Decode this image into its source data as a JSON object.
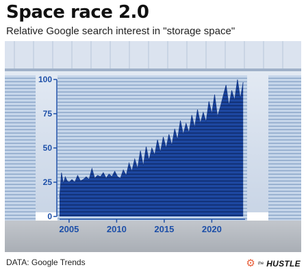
{
  "header": {
    "title": "Space race 2.0",
    "subtitle": "Relative Google search interest in \"storage space\""
  },
  "footer": {
    "source": "DATA: Google Trends",
    "brand_small": "the",
    "brand_name": "HUSTLE",
    "brand_icon": "hubspot-sprocket-icon"
  },
  "colors": {
    "area_fill": "#1d47a0",
    "area_dark": "#0e2a6b",
    "axis_text": "#1d4fa8",
    "door_light": "#c6d6ea",
    "door_stripe": "#8aa5c8",
    "wall": "#d2dceb",
    "ground": "#b4b9c0"
  },
  "chart_data": {
    "type": "area",
    "title": "",
    "xlabel": "",
    "ylabel": "",
    "xlim": [
      2004,
      2023.5
    ],
    "ylim": [
      0,
      100
    ],
    "x_ticks": [
      {
        "label": "2005",
        "value": 2005
      },
      {
        "label": "2010",
        "value": 2010
      },
      {
        "label": "2015",
        "value": 2015
      },
      {
        "label": "2020",
        "value": 2020
      }
    ],
    "y_ticks": [
      {
        "label": "0",
        "value": 0
      },
      {
        "label": "25",
        "value": 25
      },
      {
        "label": "50",
        "value": 50
      },
      {
        "label": "75",
        "value": 75
      },
      {
        "label": "100",
        "value": 100
      }
    ],
    "grid": false,
    "legend": "none",
    "series": [
      {
        "x": [
          2004.0,
          2004.2,
          2004.4,
          2004.6,
          2004.8,
          2005.0,
          2005.3,
          2005.6,
          2005.9,
          2006.2,
          2006.5,
          2006.8,
          2007.1,
          2007.4,
          2007.7,
          2008.0,
          2008.3,
          2008.6,
          2008.9,
          2009.2,
          2009.5,
          2009.8,
          2010.1,
          2010.4,
          2010.7,
          2011.0,
          2011.3,
          2011.6,
          2011.9,
          2012.2,
          2012.5,
          2012.8,
          2013.1,
          2013.4,
          2013.7,
          2014.0,
          2014.3,
          2014.6,
          2014.9,
          2015.2,
          2015.5,
          2015.8,
          2016.1,
          2016.4,
          2016.7,
          2017.0,
          2017.3,
          2017.6,
          2017.9,
          2018.2,
          2018.5,
          2018.8,
          2019.1,
          2019.4,
          2019.7,
          2020.0,
          2020.3,
          2020.6,
          2020.9,
          2021.2,
          2021.5,
          2021.8,
          2022.1,
          2022.4,
          2022.7,
          2023.0,
          2023.3
        ],
        "values": [
          14,
          32,
          24,
          29,
          26,
          25,
          27,
          25,
          30,
          26,
          27,
          29,
          27,
          35,
          28,
          30,
          29,
          32,
          28,
          31,
          29,
          33,
          29,
          28,
          34,
          30,
          39,
          33,
          42,
          35,
          48,
          37,
          51,
          41,
          50,
          45,
          56,
          47,
          58,
          50,
          60,
          52,
          64,
          56,
          70,
          60,
          68,
          61,
          74,
          65,
          78,
          68,
          76,
          69,
          84,
          75,
          89,
          73,
          80,
          88,
          96,
          81,
          92,
          85,
          100,
          86,
          98
        ]
      }
    ]
  }
}
